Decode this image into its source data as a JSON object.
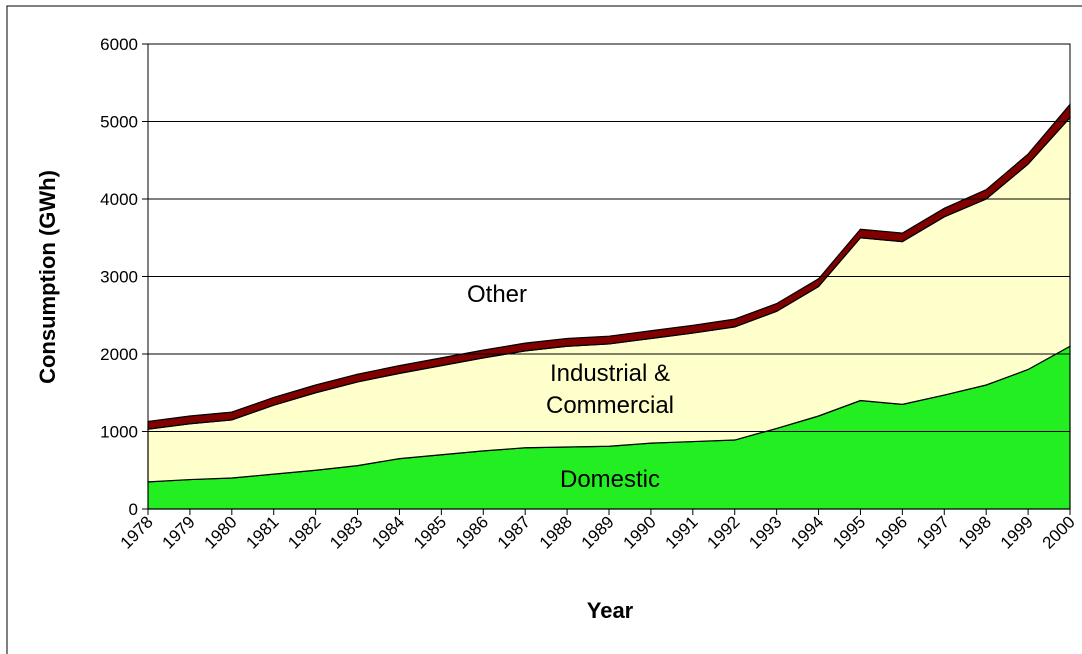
{
  "chart_data": {
    "type": "stacked_area",
    "x_label": "Year",
    "y_label": "Consumption (GWh)",
    "categories": [
      "1978",
      "1979",
      "1980",
      "1981",
      "1982",
      "1983",
      "1984",
      "1985",
      "1986",
      "1987",
      "1988",
      "1989",
      "1990",
      "1991",
      "1992",
      "1993",
      "1994",
      "1995",
      "1996",
      "1997",
      "1998",
      "1999",
      "2000"
    ],
    "series": [
      {
        "name": "Domestic",
        "color": "#22ee22",
        "values": [
          350,
          380,
          400,
          450,
          500,
          560,
          650,
          700,
          750,
          790,
          800,
          810,
          850,
          870,
          890,
          1040,
          1200,
          1400,
          1350,
          1470,
          1600,
          1800,
          2100
        ]
      },
      {
        "name": "Industrial & Commercial",
        "color": "#ffffcc",
        "values": [
          680,
          720,
          750,
          890,
          1000,
          1080,
          1100,
          1150,
          1200,
          1250,
          1300,
          1320,
          1350,
          1400,
          1460,
          1510,
          1670,
          2100,
          2100,
          2300,
          2400,
          2650,
          2950
        ]
      },
      {
        "name": "Other",
        "color": "#800000",
        "values": [
          100,
          100,
          100,
          100,
          100,
          100,
          100,
          100,
          100,
          100,
          100,
          100,
          100,
          100,
          100,
          100,
          100,
          110,
          110,
          110,
          120,
          130,
          170
        ]
      }
    ],
    "ylim": [
      0,
      6000
    ],
    "yticks": [
      0,
      1000,
      2000,
      3000,
      4000,
      5000,
      6000
    ],
    "grid": true
  }
}
